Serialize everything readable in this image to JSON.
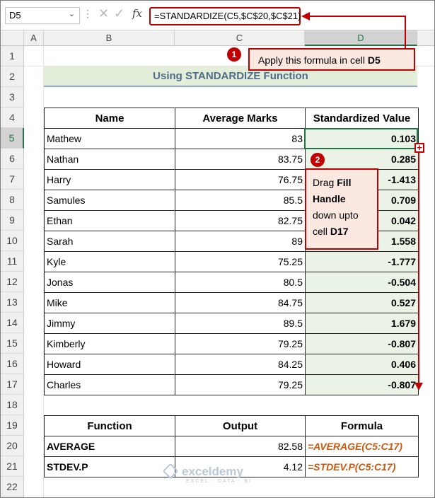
{
  "formula_bar": {
    "name_box": "D5",
    "cancel_icon": "✕",
    "enter_icon": "✓",
    "fx_label": "fx",
    "formula": "=STANDARDIZE(C5,$C$20,$C$21)"
  },
  "columns": [
    "A",
    "B",
    "C",
    "D"
  ],
  "rows": [
    "1",
    "2",
    "3",
    "4",
    "5",
    "6",
    "7",
    "8",
    "9",
    "10",
    "11",
    "12",
    "13",
    "14",
    "15",
    "16",
    "17",
    "18",
    "19",
    "20",
    "21",
    "22"
  ],
  "title": "Using STANDARDIZE Function",
  "main_table": {
    "headers": [
      "Name",
      "Average Marks",
      "Standardized Value"
    ],
    "rows": [
      {
        "name": "Mathew",
        "marks": "83",
        "std": "0.103"
      },
      {
        "name": "Nathan",
        "marks": "83.75",
        "std": "0.285"
      },
      {
        "name": "Harry",
        "marks": "76.75",
        "std": "-1.413"
      },
      {
        "name": "Samules",
        "marks": "85.5",
        "std": "0.709"
      },
      {
        "name": "Ethan",
        "marks": "82.75",
        "std": "0.042"
      },
      {
        "name": "Sarah",
        "marks": "89",
        "std": "1.558"
      },
      {
        "name": "Kyle",
        "marks": "75.25",
        "std": "-1.777"
      },
      {
        "name": "Jonas",
        "marks": "80.5",
        "std": "-0.504"
      },
      {
        "name": "Mike",
        "marks": "84.75",
        "std": "0.527"
      },
      {
        "name": "Jimmy",
        "marks": "89.5",
        "std": "1.679"
      },
      {
        "name": "Kimberly",
        "marks": "79.25",
        "std": "-0.807"
      },
      {
        "name": "Howard",
        "marks": "84.25",
        "std": "0.406"
      },
      {
        "name": "Charles",
        "marks": "79.25",
        "std": "-0.807"
      }
    ]
  },
  "summary_table": {
    "headers": [
      "Function",
      "Output",
      "Formula"
    ],
    "rows": [
      {
        "function": "AVERAGE",
        "output": "82.58",
        "formula": "=AVERAGE(C5:C17)"
      },
      {
        "function": "STDEV.P",
        "output": "4.12",
        "formula": "=STDEV.P(C5:C17)"
      }
    ]
  },
  "callout1": {
    "badge": "1",
    "text": "Apply this formula in cell ",
    "bold": "D5"
  },
  "callout2": {
    "badge": "2",
    "t1": "Drag ",
    "b1": "Fill",
    "b2": "Handle",
    "t2": "down upto",
    "t3": "cell ",
    "b3": "D17"
  },
  "watermark": {
    "name": "exceldemy",
    "tagline": "EXCEL · DATA · BI"
  },
  "colors": {
    "accent": "#c00000",
    "excel_green": "#217346",
    "title_bg": "#e3efda",
    "formula_text": "#c55a11"
  }
}
